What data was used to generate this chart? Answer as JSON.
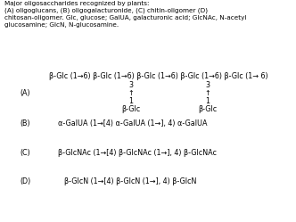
{
  "title_lines": [
    "Major oligosaccharides recognized by plants:",
    "(A) oligoglucans, (B) oligogalacturonide, (C) chitin-oligomer (D)",
    "chitosan-oligomer. Glc, glucose; GalUA, galacturonic acid; GlcNAc, N-acetyl",
    "glucosamine; GlcN, N-glucosamine."
  ],
  "label_A": "(A)",
  "label_B": "(B)",
  "label_C": "(C)",
  "label_D": "(D)",
  "line_A_main": "β-Glc (1→6) β-Glc (1→6) β-Glc (1→6) β-Glc (1→6) β-Glc (1→ 6)",
  "line_B": "α-GalUA (1→[4) α-GalUA (1→], 4) α-GalUA",
  "line_C": "β-GlcNAc (1→[4) β-GlcNAc (1→], 4) β-GlcNAc",
  "line_D": "β-GlcN (1→[4) β-GlcN (1→], 4) β-GlcN",
  "bg_color": "#ffffff",
  "text_color": "#000000",
  "font_size_title": 5.2,
  "font_size_main": 5.8
}
